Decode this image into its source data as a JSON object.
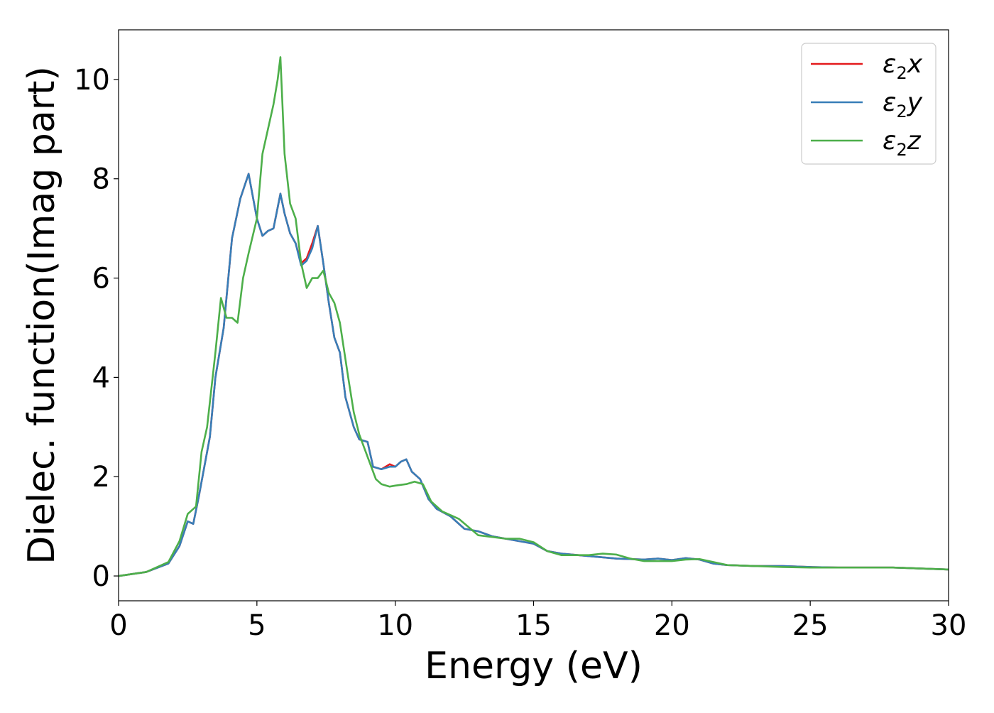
{
  "chart_data": {
    "type": "line",
    "title": "",
    "xlabel": "Energy (eV)",
    "ylabel": "Dielec. function(Imag part)",
    "xlim": [
      0,
      30
    ],
    "ylim": [
      -0.5,
      11.0
    ],
    "xticks": [
      0,
      5,
      10,
      15,
      20,
      25,
      30
    ],
    "yticks": [
      0,
      2,
      4,
      6,
      8,
      10
    ],
    "grid": false,
    "legend_position": "top-right",
    "legend": [
      {
        "sym": "ε",
        "sub": "2",
        "var": "x",
        "color": "#e41a1c"
      },
      {
        "sym": "ε",
        "sub": "2",
        "var": "y",
        "color": "#377eb8"
      },
      {
        "sym": "ε",
        "sub": "2",
        "var": "z",
        "color": "#4daf4a"
      }
    ],
    "series": [
      {
        "color": "#e41a1c",
        "x": [
          0,
          1.0,
          1.8,
          2.2,
          2.5,
          2.7,
          2.9,
          3.1,
          3.3,
          3.5,
          3.8,
          4.1,
          4.4,
          4.7,
          5.0,
          5.2,
          5.4,
          5.6,
          5.85,
          6.0,
          6.2,
          6.4,
          6.6,
          6.8,
          7.0,
          7.2,
          7.4,
          7.6,
          7.8,
          8.0,
          8.2,
          8.5,
          8.7,
          9.0,
          9.2,
          9.5,
          9.8,
          10.0,
          10.2,
          10.4,
          10.6,
          10.9,
          11.2,
          11.5,
          12.0,
          12.5,
          13.0,
          13.5,
          14.0,
          14.5,
          15.0,
          15.5,
          16.0,
          17.0,
          18.0,
          19.0,
          19.5,
          20.0,
          20.5,
          21.0,
          21.5,
          22.0,
          23.0,
          24.0,
          25.0,
          26.0,
          27.0,
          28.0,
          29.0,
          30.0
        ],
        "y": [
          0,
          0.08,
          0.25,
          0.6,
          1.1,
          1.05,
          1.6,
          2.2,
          2.8,
          4.0,
          5.0,
          6.8,
          7.6,
          8.1,
          7.2,
          6.85,
          6.95,
          7.0,
          7.7,
          7.3,
          6.9,
          6.7,
          6.3,
          6.4,
          6.7,
          7.05,
          6.3,
          5.5,
          4.8,
          4.5,
          3.6,
          3.0,
          2.75,
          2.7,
          2.2,
          2.15,
          2.25,
          2.2,
          2.3,
          2.35,
          2.1,
          1.95,
          1.55,
          1.35,
          1.2,
          0.95,
          0.9,
          0.8,
          0.75,
          0.7,
          0.65,
          0.5,
          0.45,
          0.4,
          0.35,
          0.33,
          0.35,
          0.32,
          0.36,
          0.33,
          0.25,
          0.22,
          0.2,
          0.2,
          0.18,
          0.17,
          0.17,
          0.17,
          0.15,
          0.13
        ]
      },
      {
        "color": "#377eb8",
        "x": [
          0,
          1.0,
          1.8,
          2.2,
          2.5,
          2.7,
          2.9,
          3.1,
          3.3,
          3.5,
          3.8,
          4.1,
          4.4,
          4.7,
          5.0,
          5.2,
          5.4,
          5.6,
          5.85,
          6.0,
          6.2,
          6.4,
          6.6,
          6.8,
          7.0,
          7.2,
          7.4,
          7.6,
          7.8,
          8.0,
          8.2,
          8.5,
          8.7,
          9.0,
          9.2,
          9.5,
          9.8,
          10.0,
          10.2,
          10.4,
          10.6,
          10.9,
          11.2,
          11.5,
          12.0,
          12.5,
          13.0,
          13.5,
          14.0,
          14.5,
          15.0,
          15.5,
          16.0,
          17.0,
          18.0,
          19.0,
          19.5,
          20.0,
          20.5,
          21.0,
          21.5,
          22.0,
          23.0,
          24.0,
          25.0,
          26.0,
          27.0,
          28.0,
          29.0,
          30.0
        ],
        "y": [
          0,
          0.08,
          0.25,
          0.6,
          1.1,
          1.05,
          1.6,
          2.2,
          2.8,
          4.0,
          5.0,
          6.8,
          7.6,
          8.1,
          7.2,
          6.85,
          6.95,
          7.0,
          7.7,
          7.3,
          6.9,
          6.7,
          6.25,
          6.35,
          6.6,
          7.05,
          6.3,
          5.5,
          4.8,
          4.5,
          3.6,
          3.0,
          2.75,
          2.7,
          2.2,
          2.15,
          2.2,
          2.2,
          2.3,
          2.35,
          2.1,
          1.95,
          1.55,
          1.35,
          1.2,
          0.95,
          0.9,
          0.8,
          0.75,
          0.7,
          0.65,
          0.5,
          0.45,
          0.4,
          0.35,
          0.33,
          0.35,
          0.32,
          0.36,
          0.33,
          0.25,
          0.22,
          0.2,
          0.2,
          0.18,
          0.17,
          0.17,
          0.17,
          0.15,
          0.13
        ]
      },
      {
        "color": "#4daf4a",
        "x": [
          0,
          1.0,
          1.8,
          2.2,
          2.5,
          2.6,
          2.8,
          3.0,
          3.2,
          3.5,
          3.7,
          3.9,
          4.1,
          4.3,
          4.5,
          4.7,
          5.0,
          5.2,
          5.4,
          5.6,
          5.75,
          5.85,
          6.0,
          6.2,
          6.4,
          6.6,
          6.8,
          7.0,
          7.2,
          7.4,
          7.6,
          7.8,
          8.0,
          8.3,
          8.5,
          8.7,
          9.0,
          9.3,
          9.5,
          9.8,
          10.0,
          10.4,
          10.7,
          11.0,
          11.3,
          11.7,
          12.3,
          13.0,
          14.0,
          14.5,
          15.0,
          15.5,
          16.0,
          17.0,
          17.5,
          18.0,
          18.5,
          19.0,
          20.0,
          20.5,
          21.0,
          22.0,
          23.0,
          24.0,
          25.0,
          26.0,
          27.0,
          28.0,
          29.0,
          30.0
        ],
        "y": [
          0,
          0.08,
          0.28,
          0.7,
          1.25,
          1.3,
          1.4,
          2.5,
          3.0,
          4.5,
          5.6,
          5.2,
          5.2,
          5.1,
          6.0,
          6.5,
          7.2,
          8.5,
          9.0,
          9.5,
          10.0,
          10.45,
          8.5,
          7.5,
          7.2,
          6.3,
          5.8,
          6.0,
          6.0,
          6.15,
          5.7,
          5.5,
          5.1,
          4.0,
          3.3,
          2.85,
          2.4,
          1.95,
          1.85,
          1.8,
          1.82,
          1.85,
          1.9,
          1.85,
          1.5,
          1.3,
          1.15,
          0.82,
          0.75,
          0.75,
          0.68,
          0.5,
          0.42,
          0.42,
          0.45,
          0.43,
          0.35,
          0.3,
          0.3,
          0.33,
          0.34,
          0.22,
          0.2,
          0.18,
          0.17,
          0.17,
          0.17,
          0.17,
          0.15,
          0.13
        ]
      }
    ]
  }
}
